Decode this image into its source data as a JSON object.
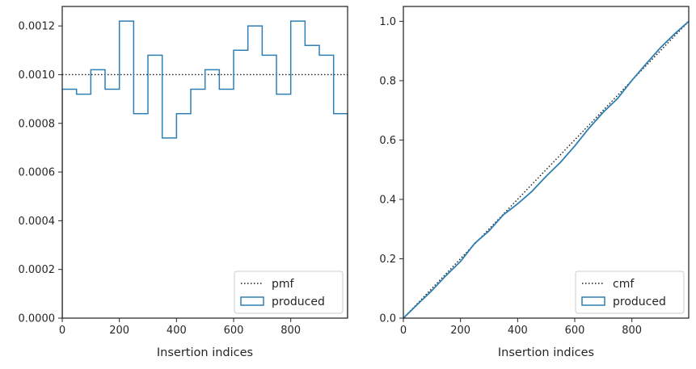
{
  "colors": {
    "produced": "#2f7fb4",
    "reference": "#1a1a1a",
    "axes": "#262626"
  },
  "chart_data": [
    {
      "type": "line",
      "xlabel": "Insertion indices",
      "ylabel": "",
      "xlim": [
        0,
        999
      ],
      "ylim": [
        0,
        0.00128
      ],
      "xticks": [
        0,
        200,
        400,
        600,
        800
      ],
      "xtick_labels": [
        "0",
        "200",
        "400",
        "600",
        "800"
      ],
      "yticks": [
        0,
        0.0002,
        0.0004,
        0.0006,
        0.0008,
        0.001,
        0.0012
      ],
      "ytick_labels": [
        "0.0000",
        "0.0002",
        "0.0004",
        "0.0006",
        "0.0008",
        "0.0010",
        "0.0012"
      ],
      "grid": false,
      "legend_position": "lower-right",
      "series": [
        {
          "name": "pmf",
          "style": "dotted",
          "x": [
            0,
            999
          ],
          "y": [
            0.001,
            0.001
          ]
        },
        {
          "name": "produced",
          "style": "step-histogram",
          "bin_edges": [
            0,
            50,
            100,
            150,
            200,
            250,
            300,
            350,
            400,
            450,
            500,
            550,
            600,
            650,
            700,
            750,
            800,
            850,
            900,
            950,
            999
          ],
          "values": [
            0.00094,
            0.00092,
            0.00102,
            0.00094,
            0.00122,
            0.00084,
            0.00108,
            0.00074,
            0.00084,
            0.00094,
            0.00102,
            0.00094,
            0.0011,
            0.0012,
            0.00108,
            0.00092,
            0.00122,
            0.00112,
            0.00108,
            0.00084
          ]
        }
      ]
    },
    {
      "type": "line",
      "xlabel": "Insertion indices",
      "ylabel": "",
      "xlim": [
        0,
        999
      ],
      "ylim": [
        0,
        1.05
      ],
      "xticks": [
        0,
        200,
        400,
        600,
        800
      ],
      "xtick_labels": [
        "0",
        "200",
        "400",
        "600",
        "800"
      ],
      "yticks": [
        0,
        0.2,
        0.4,
        0.6,
        0.8,
        1.0
      ],
      "ytick_labels": [
        "0.0",
        "0.2",
        "0.4",
        "0.6",
        "0.8",
        "1.0"
      ],
      "grid": false,
      "legend_position": "lower-right",
      "series": [
        {
          "name": "cmf",
          "style": "dotted",
          "x": [
            0,
            999
          ],
          "y": [
            0,
            1
          ]
        },
        {
          "name": "produced",
          "style": "solid",
          "x": [
            0,
            50,
            100,
            150,
            200,
            250,
            300,
            350,
            400,
            450,
            500,
            550,
            600,
            650,
            700,
            750,
            800,
            850,
            900,
            950,
            999
          ],
          "y": [
            0,
            0.047,
            0.093,
            0.144,
            0.191,
            0.252,
            0.294,
            0.348,
            0.385,
            0.427,
            0.478,
            0.525,
            0.58,
            0.64,
            0.694,
            0.74,
            0.801,
            0.857,
            0.911,
            0.958,
            1.0
          ]
        }
      ]
    }
  ]
}
